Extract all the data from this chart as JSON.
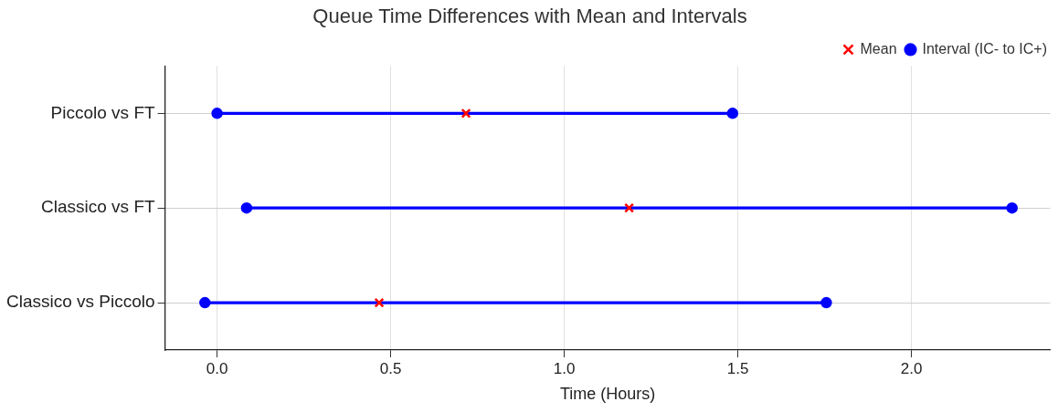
{
  "chart_data": {
    "type": "bar",
    "orientation": "horizontal",
    "title": "Queue Time Differences with Mean and Intervals",
    "xlabel": "Time (Hours)",
    "categories": [
      "Piccolo vs FT",
      "Classico vs FT",
      "Classico vs Piccolo"
    ],
    "series": [
      {
        "name": "Interval (IC- to IC+)",
        "color": "#0000ff",
        "base": [
          0.0,
          0.085,
          -0.035
        ],
        "values": [
          1.485,
          2.205,
          1.79
        ]
      },
      {
        "type": "scatter",
        "color": "#0000ff",
        "values": [
          0.0,
          0.085,
          -0.035
        ],
        "marker": "circle"
      },
      {
        "type": "scatter",
        "color": "#0000ff",
        "values": [
          1.485,
          2.29,
          1.755
        ],
        "marker": "circle"
      },
      {
        "name": "Mean",
        "type": "scatter",
        "color": "#ff0000",
        "values": [
          0.717,
          1.187,
          0.467
        ],
        "marker": "cross"
      }
    ],
    "xlim": [
      -0.15,
      2.4
    ],
    "xticks": [
      {
        "value": 0,
        "label": "0.0"
      },
      {
        "value": 0.5,
        "label": "0.5"
      },
      {
        "value": 1,
        "label": "1.0"
      },
      {
        "value": 1.5,
        "label": "1.5"
      },
      {
        "value": 2,
        "label": "2.0"
      }
    ],
    "grid": true,
    "legend": "top right"
  }
}
